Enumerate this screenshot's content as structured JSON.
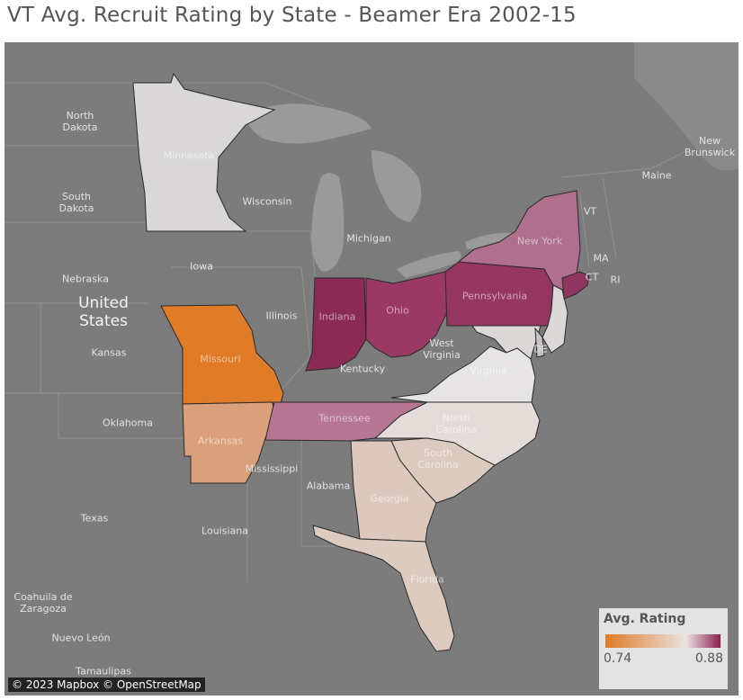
{
  "title": "VT Avg. Recruit Rating by State - Beamer Era 2002-15",
  "attribution": "© 2023 Mapbox © OpenStreetMap",
  "legend": {
    "title": "Avg. Rating",
    "min_label": "0.74",
    "max_label": "0.88",
    "color_low": "#e07b28",
    "color_mid": "#e9e3e1",
    "color_high": "#8a1f4f"
  },
  "map_labels": {
    "north_dakota": "North\nDakota",
    "south_dakota": "South\nDakota",
    "nebraska": "Nebraska",
    "united_states": "United\nStates",
    "kansas": "Kansas",
    "oklahoma": "Oklahoma",
    "texas": "Texas",
    "coahuila": "Coahuila de\nZaragoza",
    "nuevo_leon": "Nuevo León",
    "tamaulipas": "Tamaulipas",
    "wisconsin": "Wisconsin",
    "iowa": "Iowa",
    "illinois": "Illinois",
    "michigan": "Michigan",
    "kentucky": "Kentucky",
    "west_virginia": "West\nVirginia",
    "mississippi": "Mississippi",
    "alabama": "Alabama",
    "louisiana": "Louisiana",
    "maine": "Maine",
    "new_brunswick": "New\nBrunswick",
    "vt": "VT",
    "ma": "MA",
    "ct": "CT",
    "ri": "RI",
    "de": "DE"
  },
  "states": [
    {
      "name": "Minnesota",
      "color": "#d9d7d8"
    },
    {
      "name": "Missouri",
      "color": "#e07b28"
    },
    {
      "name": "Arkansas",
      "color": "#daa07c"
    },
    {
      "name": "Indiana",
      "color": "#8a2a55"
    },
    {
      "name": "Ohio",
      "color": "#9a3a64"
    },
    {
      "name": "Pennsylvania",
      "color": "#953660"
    },
    {
      "name": "New York",
      "color": "#b06f8c"
    },
    {
      "name": "New Jersey",
      "color": "#ddd8d8"
    },
    {
      "name": "Connecticut",
      "color": "#8f3560"
    },
    {
      "name": "Maryland",
      "color": "#ddd8d8"
    },
    {
      "name": "Delaware",
      "color": "#c7c3c4"
    },
    {
      "name": "Virginia",
      "color": "#e6e4e5"
    },
    {
      "name": "North Carolina",
      "color": "#e4dcd9"
    },
    {
      "name": "Tennessee",
      "color": "#b77794"
    },
    {
      "name": "South Carolina",
      "color": "#dccabf"
    },
    {
      "name": "Georgia",
      "color": "#dcc8bc"
    },
    {
      "name": "Florida",
      "color": "#ddcbc0"
    }
  ]
}
